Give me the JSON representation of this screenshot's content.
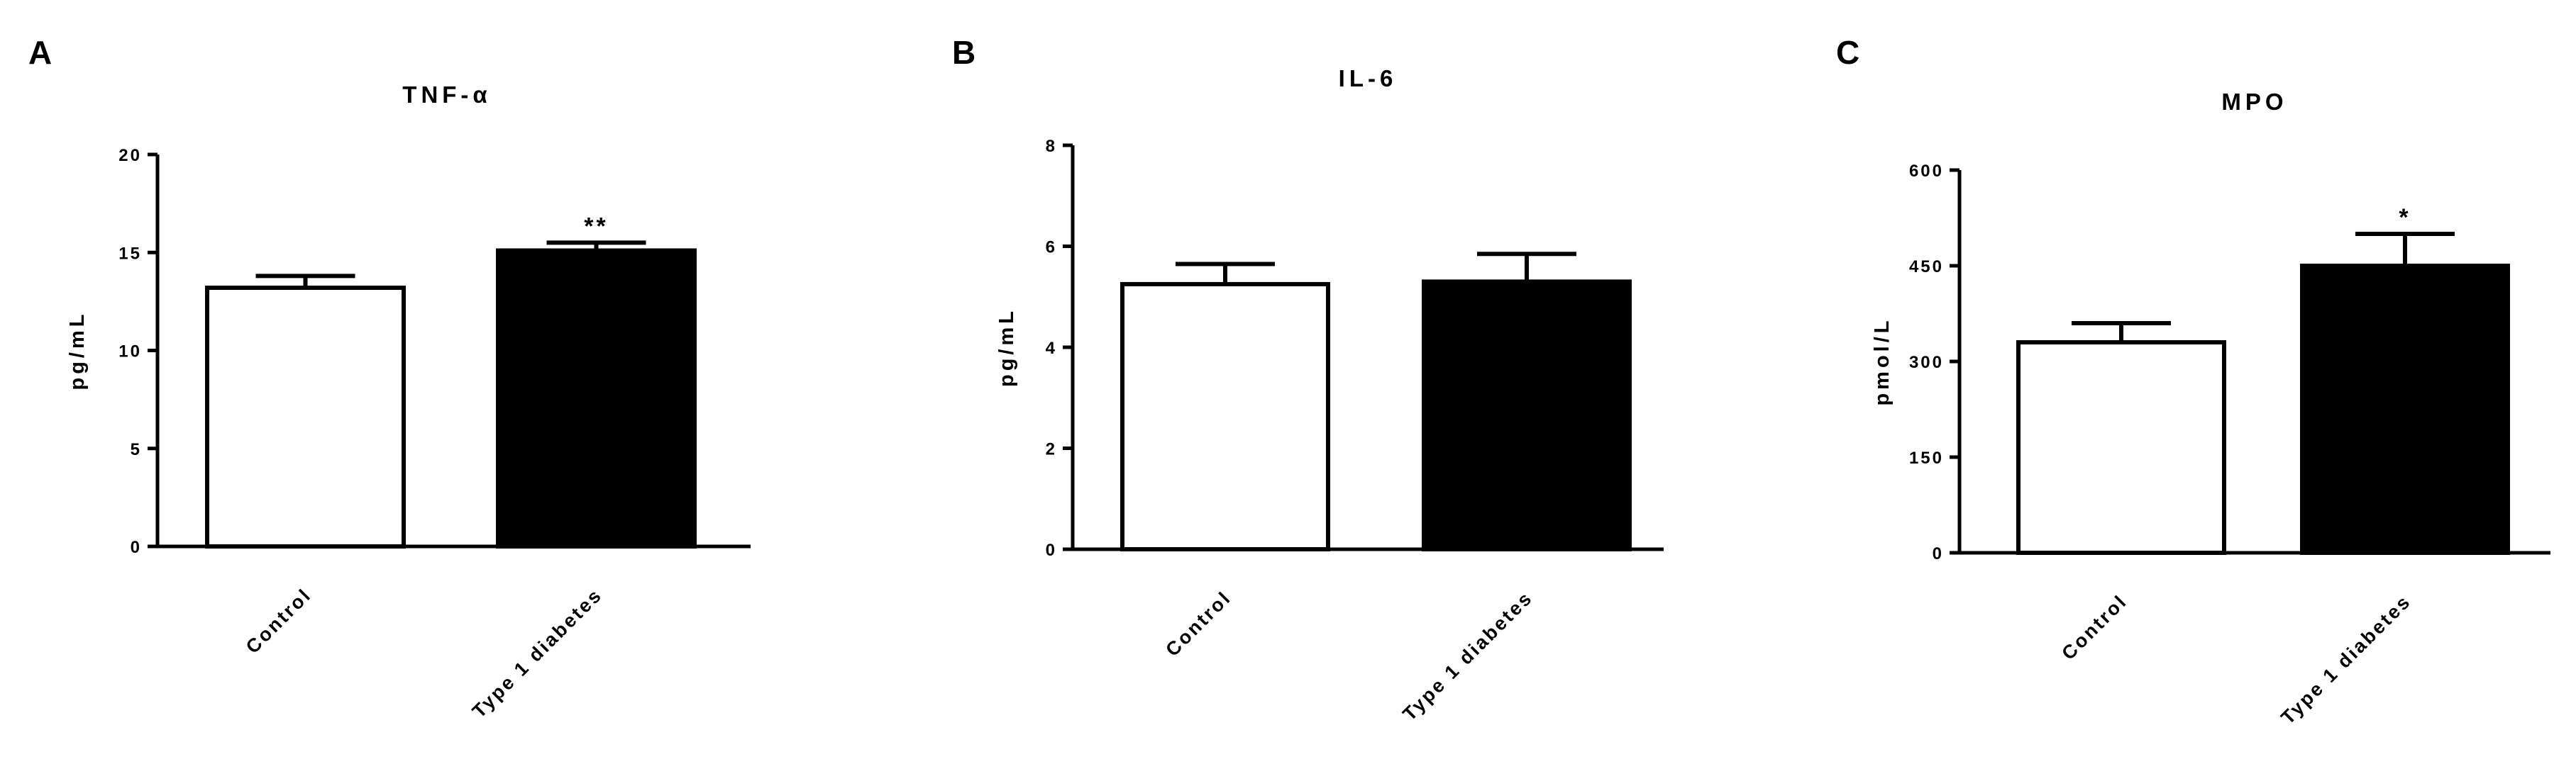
{
  "chart_data": [
    {
      "type": "bar",
      "panel": "A",
      "title": "TNF-α",
      "ylabel": "pg/mL",
      "xlabel": "",
      "ylim": [
        0,
        20
      ],
      "yticks": [
        "0",
        "5",
        "10",
        "15",
        "20"
      ],
      "categories": [
        "Control",
        "Type 1 diabetes"
      ],
      "values": [
        13.2,
        15.1
      ],
      "errors": [
        0.6,
        0.4
      ],
      "significance": [
        "",
        "**"
      ],
      "colors": [
        "#ffffff",
        "#000000"
      ]
    },
    {
      "type": "bar",
      "panel": "B",
      "title": "IL-6",
      "ylabel": "pg/mL",
      "xlabel": "",
      "ylim": [
        0,
        8
      ],
      "yticks": [
        "0",
        "2",
        "4",
        "6",
        "8"
      ],
      "categories": [
        "Control",
        "Type 1 diabetes"
      ],
      "values": [
        5.25,
        5.3
      ],
      "errors": [
        0.4,
        0.55
      ],
      "significance": [
        "",
        ""
      ],
      "colors": [
        "#ffffff",
        "#000000"
      ]
    },
    {
      "type": "bar",
      "panel": "C",
      "title": "MPO",
      "ylabel": "pmol/L",
      "xlabel": "",
      "ylim": [
        0,
        600
      ],
      "yticks": [
        "0",
        "150",
        "300",
        "450",
        "600"
      ],
      "categories": [
        "Control",
        "Type 1 diabetes"
      ],
      "values": [
        330,
        450
      ],
      "errors": [
        30,
        50
      ],
      "significance": [
        "",
        "*"
      ],
      "colors": [
        "#ffffff",
        "#000000"
      ]
    }
  ]
}
